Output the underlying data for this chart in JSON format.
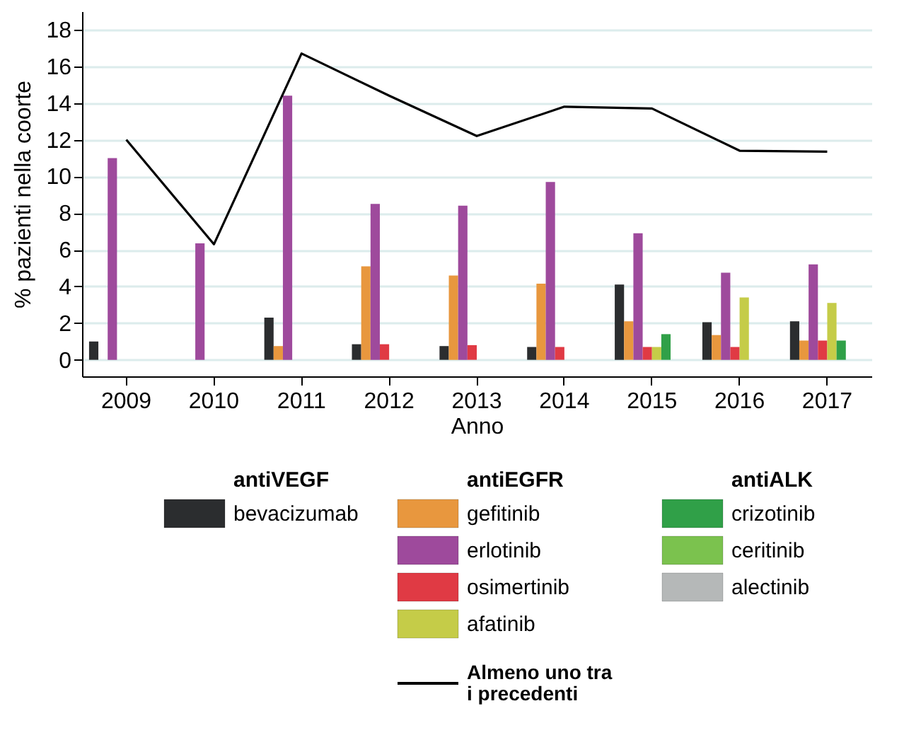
{
  "chart_data": {
    "type": "bar",
    "xlabel": "Anno",
    "ylabel": "% pazienti nella coorte",
    "categories": [
      "2009",
      "2010",
      "2011",
      "2012",
      "2013",
      "2014",
      "2015",
      "2016",
      "2017"
    ],
    "series": [
      {
        "name": "bevacizumab",
        "color": "#2b2d2f",
        "values": [
          1.0,
          null,
          2.3,
          0.85,
          0.75,
          0.7,
          4.1,
          2.05,
          2.1
        ]
      },
      {
        "name": "gefitinib",
        "color": "#e8973e",
        "values": [
          null,
          null,
          0.75,
          5.1,
          4.6,
          4.15,
          2.1,
          1.35,
          1.05
        ]
      },
      {
        "name": "erlotinib",
        "color": "#9e4a9c",
        "values": [
          11.0,
          6.35,
          14.4,
          8.5,
          8.4,
          9.7,
          6.9,
          4.75,
          5.2
        ]
      },
      {
        "name": "osimertinib",
        "color": "#e03a44",
        "values": [
          null,
          null,
          null,
          0.85,
          0.8,
          0.7,
          0.7,
          0.7,
          1.05
        ]
      },
      {
        "name": "afatinib",
        "color": "#c5cc48",
        "values": [
          null,
          null,
          null,
          null,
          null,
          null,
          0.7,
          3.4,
          3.1
        ]
      },
      {
        "name": "crizotinib",
        "color": "#30a048",
        "values": [
          null,
          null,
          null,
          null,
          null,
          null,
          1.4,
          null,
          1.05
        ]
      },
      {
        "name": "ceritinib",
        "color": "#7bc24e",
        "values": [
          null,
          null,
          null,
          null,
          null,
          null,
          null,
          null,
          null
        ]
      },
      {
        "name": "alectinib",
        "color": "#b5b8b8",
        "values": [
          null,
          null,
          null,
          null,
          null,
          null,
          null,
          null,
          null
        ]
      },
      {
        "name": "Almeno uno tra i precedenti",
        "type": "line",
        "color": "#000000",
        "values": [
          12.0,
          6.3,
          16.7,
          14.4,
          12.2,
          13.8,
          13.7,
          11.4,
          11.35
        ]
      }
    ],
    "annotations": [
      "antiVEGF",
      "antiEGFR",
      "antiALK"
    ],
    "ylim": [
      -0.9,
      19
    ],
    "yticks": [
      0,
      2,
      4,
      6,
      8,
      10,
      12,
      14,
      16,
      18
    ],
    "grid": "y",
    "legend": "bottom",
    "line_style": "solid"
  }
}
